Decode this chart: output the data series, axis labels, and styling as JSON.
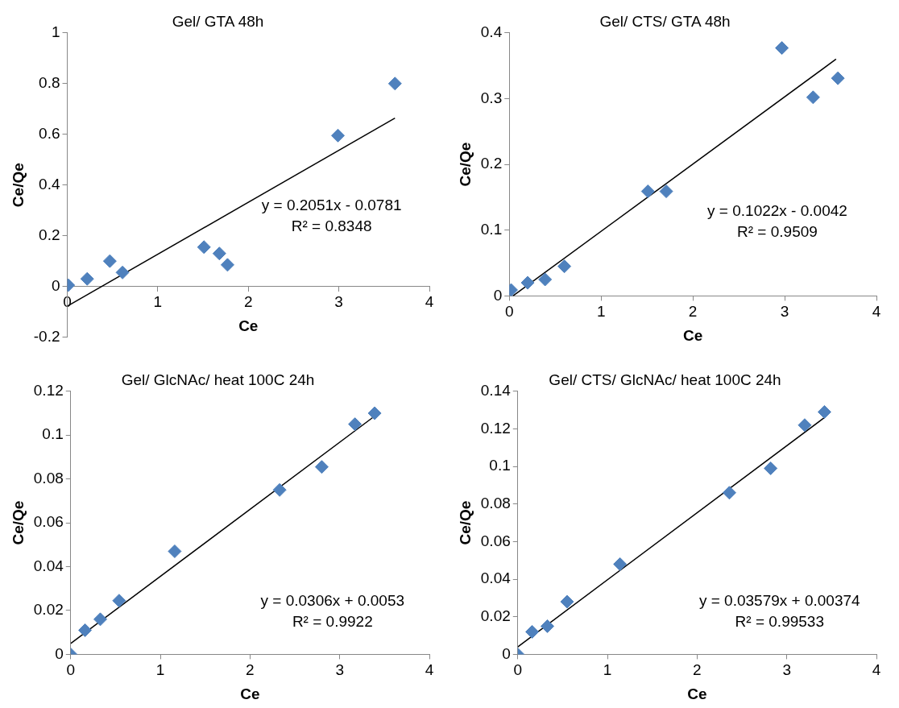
{
  "chart_data": [
    {
      "type": "scatter",
      "title": "Gel/ GTA 48h",
      "xlabel": "Ce",
      "ylabel": "Ce/Qe",
      "xlim": [
        0,
        4
      ],
      "xticks": [
        0,
        1,
        2,
        3,
        4
      ],
      "ylim": [
        -0.2,
        1
      ],
      "yticks": [
        -0.2,
        0,
        0.2,
        0.4,
        0.6,
        0.8,
        1
      ],
      "grid": false,
      "legend": false,
      "marker": "diamond",
      "series": [
        {
          "color": "#4f81bd",
          "x": [
            0.01,
            0.22,
            0.47,
            0.61,
            1.51,
            1.68,
            1.77,
            2.99,
            3.62
          ],
          "values": [
            0.005,
            0.03,
            0.1,
            0.055,
            0.155,
            0.13,
            0.085,
            0.595,
            0.8
          ]
        },
        {
          "type": "line",
          "color": "#000000",
          "marker": "none",
          "x": [
            0,
            3.62
          ],
          "values": [
            -0.078,
            0.664
          ]
        }
      ],
      "annotations": [
        "y = 0.2051x - 0.0781",
        "R² = 0.8348"
      ]
    },
    {
      "type": "scatter",
      "title": "Gel/ CTS/ GTA 48h",
      "xlabel": "Ce",
      "ylabel": "Ce/Qe",
      "xlim": [
        0,
        4
      ],
      "xticks": [
        0,
        1,
        2,
        3,
        4
      ],
      "ylim": [
        0,
        0.4
      ],
      "yticks": [
        0,
        0.1,
        0.2,
        0.3,
        0.4
      ],
      "grid": false,
      "legend": false,
      "marker": "diamond",
      "series": [
        {
          "color": "#4f81bd",
          "x": [
            0.02,
            0.2,
            0.39,
            0.6,
            1.51,
            1.71,
            2.97,
            3.31,
            3.58
          ],
          "values": [
            0.009,
            0.02,
            0.025,
            0.045,
            0.159,
            0.159,
            0.377,
            0.302,
            0.331
          ]
        },
        {
          "type": "line",
          "color": "#000000",
          "marker": "none",
          "x": [
            0.04,
            3.56
          ],
          "values": [
            0.0,
            0.36
          ]
        }
      ],
      "annotations": [
        "y = 0.1022x - 0.0042",
        "R² = 0.9509"
      ]
    },
    {
      "type": "scatter",
      "title": "Gel/ GlcNAc/ heat 100C 24h",
      "xlabel": "Ce",
      "ylabel": "Ce/Qe",
      "xlim": [
        0,
        4
      ],
      "xticks": [
        0,
        1,
        2,
        3,
        4
      ],
      "ylim": [
        0,
        0.12
      ],
      "yticks": [
        0,
        0.02,
        0.04,
        0.06,
        0.08,
        0.1,
        0.12
      ],
      "grid": false,
      "legend": false,
      "marker": "diamond",
      "series": [
        {
          "color": "#4f81bd",
          "x": [
            0,
            0.16,
            0.33,
            0.54,
            1.16,
            2.33,
            2.8,
            3.17,
            3.39
          ],
          "values": [
            0,
            0.011,
            0.016,
            0.0245,
            0.047,
            0.075,
            0.0855,
            0.105,
            0.11
          ]
        },
        {
          "type": "line",
          "color": "#000000",
          "marker": "none",
          "x": [
            0,
            3.4
          ],
          "values": [
            0.005,
            0.109
          ]
        }
      ],
      "annotations": [
        "y = 0.0306x + 0.0053",
        "R² = 0.9922"
      ]
    },
    {
      "type": "scatter",
      "title": "Gel/ CTS/ GlcNAc/ heat 100C 24h",
      "xlabel": "Ce",
      "ylabel": "Ce/Qe",
      "xlim": [
        0,
        4
      ],
      "xticks": [
        0,
        1,
        2,
        3,
        4
      ],
      "ylim": [
        0,
        0.14
      ],
      "yticks": [
        0,
        0.02,
        0.04,
        0.06,
        0.08,
        0.1,
        0.12,
        0.14
      ],
      "grid": false,
      "legend": false,
      "marker": "diamond",
      "series": [
        {
          "color": "#4f81bd",
          "x": [
            0,
            0.16,
            0.33,
            0.55,
            1.14,
            2.36,
            2.82,
            3.2,
            3.42
          ],
          "values": [
            0,
            0.012,
            0.015,
            0.028,
            0.048,
            0.086,
            0.099,
            0.122,
            0.129
          ]
        },
        {
          "type": "line",
          "color": "#000000",
          "marker": "none",
          "x": [
            0,
            3.42
          ],
          "values": [
            0.004,
            0.126
          ]
        }
      ],
      "annotations": [
        "y = 0.03579x + 0.00374",
        "R² = 0.99533"
      ]
    }
  ]
}
